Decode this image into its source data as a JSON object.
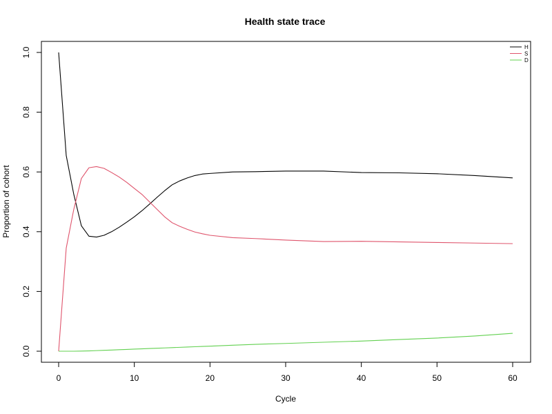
{
  "chart_data": {
    "type": "line",
    "title": "Health state trace",
    "xlabel": "Cycle",
    "ylabel": "Proportion of cohort",
    "xlim": [
      0,
      60
    ],
    "ylim": [
      0,
      1
    ],
    "x_ticks": [
      0,
      10,
      20,
      30,
      40,
      50,
      60
    ],
    "y_ticks": [
      0.0,
      0.2,
      0.4,
      0.6,
      0.8,
      1.0
    ],
    "x_tick_labels": [
      "0",
      "10",
      "20",
      "30",
      "40",
      "50",
      "60"
    ],
    "y_tick_labels": [
      "0.0",
      "0.2",
      "0.4",
      "0.6",
      "0.8",
      "1.0"
    ],
    "grid": false,
    "legend_position": "top-right",
    "x": [
      0,
      1,
      2,
      3,
      4,
      5,
      6,
      7,
      8,
      9,
      10,
      11,
      12,
      13,
      14,
      15,
      16,
      17,
      18,
      19,
      20,
      23,
      26,
      30,
      35,
      40,
      45,
      50,
      55,
      60
    ],
    "series": [
      {
        "name": "H",
        "color": "#000000",
        "values": [
          1.0,
          0.655,
          0.525,
          0.42,
          0.385,
          0.382,
          0.388,
          0.4,
          0.415,
          0.432,
          0.45,
          0.47,
          0.492,
          0.515,
          0.537,
          0.557,
          0.57,
          0.58,
          0.588,
          0.593,
          0.595,
          0.6,
          0.601,
          0.603,
          0.603,
          0.598,
          0.597,
          0.594,
          0.588,
          0.58
        ]
      },
      {
        "name": "S",
        "color": "#DF536B",
        "values": [
          0.0,
          0.345,
          0.475,
          0.578,
          0.614,
          0.618,
          0.612,
          0.598,
          0.583,
          0.565,
          0.545,
          0.525,
          0.5,
          0.475,
          0.45,
          0.43,
          0.418,
          0.408,
          0.399,
          0.393,
          0.388,
          0.38,
          0.377,
          0.372,
          0.367,
          0.368,
          0.366,
          0.364,
          0.362,
          0.36
        ]
      },
      {
        "name": "D",
        "color": "#61D04F",
        "values": [
          0.0,
          0.0,
          0.0,
          0.0005,
          0.001,
          0.002,
          0.003,
          0.004,
          0.005,
          0.006,
          0.007,
          0.008,
          0.009,
          0.01,
          0.011,
          0.012,
          0.013,
          0.014,
          0.015,
          0.016,
          0.017,
          0.02,
          0.023,
          0.026,
          0.03,
          0.034,
          0.039,
          0.044,
          0.051,
          0.06
        ]
      }
    ]
  }
}
